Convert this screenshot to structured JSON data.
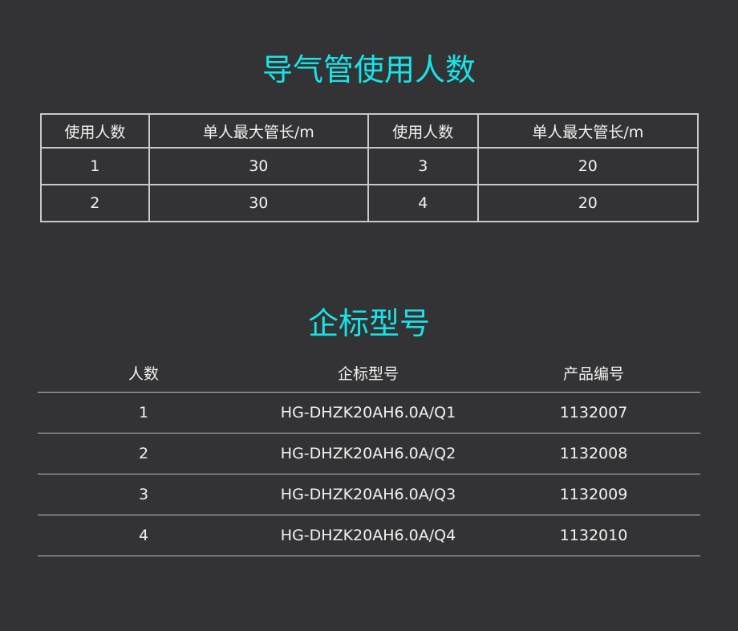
{
  "section1": {
    "title": "导气管使用人数",
    "headers": [
      "使用人数",
      "单人最大管长/m",
      "使用人数",
      "单人最大管长/m"
    ],
    "rows": [
      [
        "1",
        "30",
        "3",
        "20"
      ],
      [
        "2",
        "30",
        "4",
        "20"
      ]
    ]
  },
  "section2": {
    "title": "企标型号",
    "headers": [
      "人数",
      "企标型号",
      "产品编号"
    ],
    "rows": [
      [
        "1",
        "HG-DHZK20AH6.0A/Q1",
        "1132007"
      ],
      [
        "2",
        "HG-DHZK20AH6.0A/Q2",
        "1132008"
      ],
      [
        "3",
        "HG-DHZK20AH6.0A/Q3",
        "1132009"
      ],
      [
        "4",
        "HG-DHZK20AH6.0A/Q4",
        "1132010"
      ]
    ]
  },
  "colors": {
    "accent": "#19e3e6",
    "background": "#333335"
  }
}
